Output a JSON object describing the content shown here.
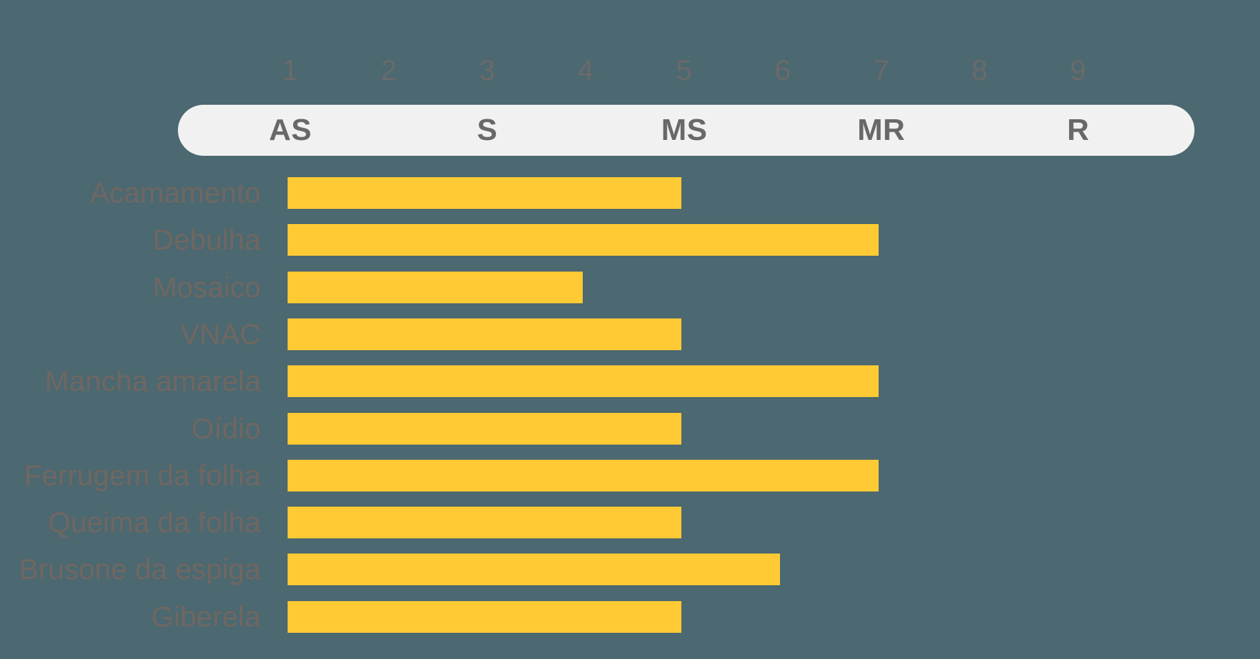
{
  "chart_data": {
    "type": "bar",
    "orientation": "horizontal",
    "title": "",
    "xlabel": "",
    "ylabel": "",
    "scale": {
      "min": 1,
      "max": 9,
      "ticks": [
        "1",
        "2",
        "3",
        "4",
        "5",
        "6",
        "7",
        "8",
        "9"
      ]
    },
    "zones": [
      {
        "label": "AS",
        "value": 1
      },
      {
        "label": "S",
        "value": 3
      },
      {
        "label": "MS",
        "value": 5
      },
      {
        "label": "MR",
        "value": 7
      },
      {
        "label": "R",
        "value": 9
      }
    ],
    "categories": [
      "Acamamento",
      "Debulha",
      "Mosaico",
      "VNAC",
      "Mancha amarela",
      "Oídio",
      "Ferrugem da folha",
      "Queima da folha",
      "Brusone da espiga",
      "Giberela"
    ],
    "values": [
      5,
      7,
      4,
      5,
      7,
      5,
      7,
      5,
      6,
      5
    ],
    "legend": [],
    "grid": false,
    "colors": {
      "background": "#4C6870",
      "bar": "#FFCA33",
      "pill_background": "#F2F1F1",
      "pill_text": "#696869",
      "tick_text": "#6A6A6B",
      "category_text": "#6F6762"
    }
  }
}
